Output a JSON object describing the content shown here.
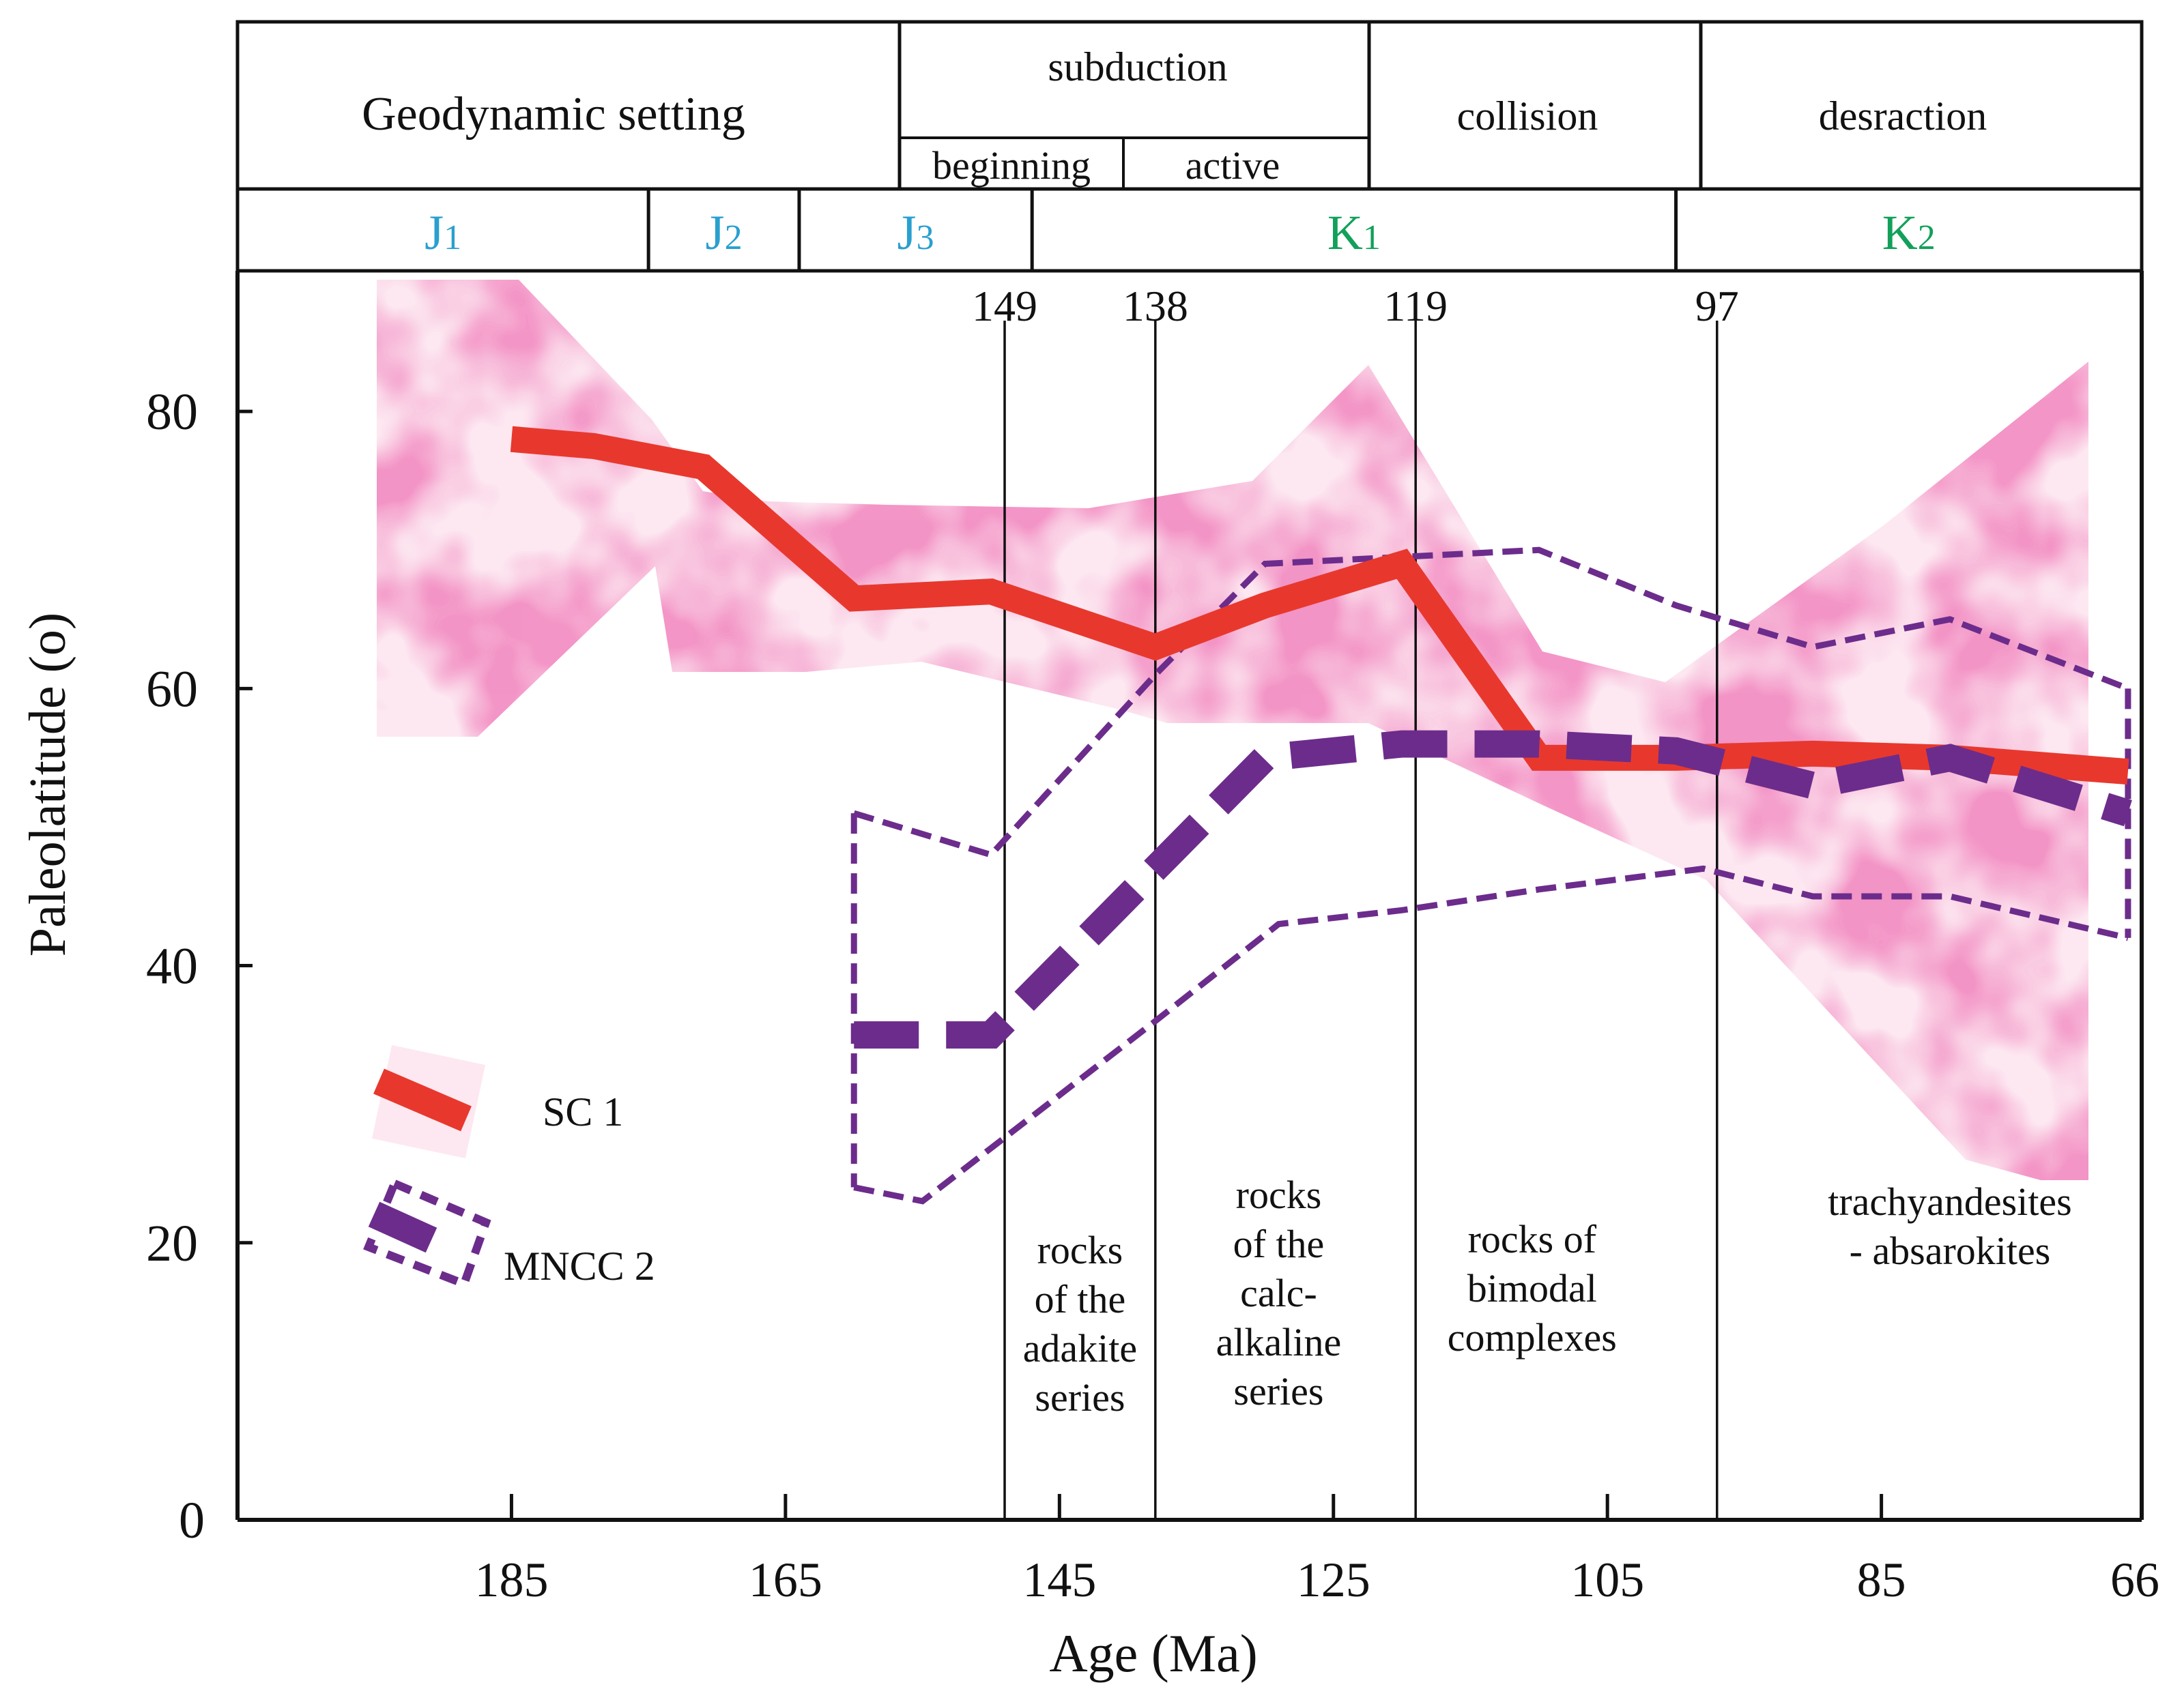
{
  "chart_data": {
    "type": "line",
    "xlabel": "Age (Ma)",
    "ylabel": "Paleolatitude (o)",
    "xlim": [
      205,
      66
    ],
    "ylim": [
      0,
      90
    ],
    "x_ticks": [
      185,
      165,
      145,
      125,
      105,
      85,
      66
    ],
    "y_ticks": [
      0,
      20,
      40,
      60,
      80
    ],
    "header": {
      "setting_title": "Geodynamic setting",
      "subduction": "subduction",
      "beginning": "beginning",
      "active": "active",
      "collision": "collision",
      "desraction": "desraction",
      "periods": [
        {
          "main": "J",
          "sub": "1",
          "start": 205,
          "end": 175,
          "color": "#29a0cf"
        },
        {
          "main": "J",
          "sub": "2",
          "start": 175,
          "end": 164,
          "color": "#29a0cf"
        },
        {
          "main": "J",
          "sub": "3",
          "start": 164,
          "end": 147,
          "color": "#29a0cf"
        },
        {
          "main": "K",
          "sub": "1",
          "start": 147,
          "end": 100,
          "color": "#12a05a"
        },
        {
          "main": "K",
          "sub": "2",
          "start": 100,
          "end": 66,
          "color": "#12a05a"
        }
      ]
    },
    "boundaries": [
      {
        "age": 149,
        "label": "149"
      },
      {
        "age": 138,
        "label": "138"
      },
      {
        "age": 119,
        "label": "119"
      },
      {
        "age": 97,
        "label": "97"
      }
    ],
    "series": [
      {
        "name": "SC 1",
        "color": "#e8382d",
        "style": "solid",
        "x": [
          185,
          179,
          171,
          160,
          150,
          138,
          130,
          120,
          110,
          100,
          90,
          80,
          67
        ],
        "y": [
          78,
          77.5,
          76,
          66.5,
          67,
          63,
          66,
          69,
          55,
          55,
          55.3,
          55,
          54
        ]
      },
      {
        "name": "MNCC 2",
        "color": "#6c2c8c",
        "style": "dashed",
        "x": [
          160,
          150,
          138,
          130,
          120,
          110,
          100,
          90,
          80,
          67
        ],
        "y": [
          35,
          35,
          47,
          55,
          56,
          56,
          55.5,
          53,
          55,
          51
        ]
      }
    ],
    "confidence_band": {
      "series": "MNCC 2",
      "upper_x": [
        160,
        150,
        138,
        130,
        120,
        110,
        100,
        90,
        80,
        67
      ],
      "upper_y": [
        51,
        48,
        61,
        69,
        69.5,
        70,
        66,
        63,
        65,
        60
      ],
      "lower_x": [
        160,
        155,
        138,
        129,
        120,
        110,
        98,
        90,
        80,
        67
      ],
      "lower_y": [
        24,
        23,
        36,
        43,
        44,
        45.5,
        47,
        45,
        45,
        42
      ]
    },
    "annotations": [
      {
        "lines": [
          "rocks",
          "of the",
          "adakite",
          "series"
        ],
        "x": 143.5,
        "y": 18.5
      },
      {
        "lines": [
          "rocks",
          "of the",
          "calc-",
          "alkaline",
          "series"
        ],
        "x": 129,
        "y": 22.5
      },
      {
        "lines": [
          "rocks of",
          "bimodal",
          "complexes"
        ],
        "x": 110.5,
        "y": 19.3
      },
      {
        "lines": [
          "trachyandesites",
          "- absarokites"
        ],
        "x": 80,
        "y": 22
      }
    ],
    "legend": [
      {
        "label": "SC  1",
        "series": "SC 1",
        "position": "lower-left"
      },
      {
        "label": "MNCC 2",
        "series": "MNCC 2",
        "position": "lower-left"
      }
    ]
  }
}
